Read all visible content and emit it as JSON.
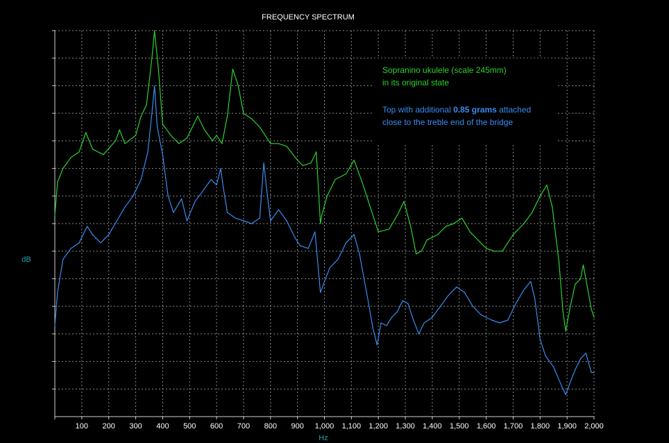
{
  "chart_data": {
    "type": "line",
    "title": "FREQUENCY SPECTRUM",
    "xlabel": "Hz",
    "ylabel": "dB",
    "xlim": [
      0,
      2000
    ],
    "ylim": [
      0,
      14
    ],
    "x_ticks": [
      "100",
      "200",
      "300",
      "400",
      "500",
      "600",
      "700",
      "800",
      "900",
      "1,000",
      "1,100",
      "1,200",
      "1,300",
      "1,400",
      "1,500",
      "1,600",
      "1,700",
      "1,800",
      "1,900",
      "2,000"
    ],
    "grid": true,
    "legend_lines": [
      {
        "text": "Sopranino ukulele (scale 245mm)",
        "color": "#2fd12f"
      },
      {
        "text": "in its original state",
        "color": "#2fd12f"
      },
      {
        "text": "",
        "color": "#3a8cf0"
      },
      {
        "text_before": "Top with additional ",
        "text_bold": "0.85 grams",
        "text_after": " attached",
        "color": "#3a8cf0"
      },
      {
        "text": "close to  the treble end  of the  bridge",
        "color": "#3a8cf0"
      }
    ],
    "series": [
      {
        "color": "#2fd12f",
        "points": [
          [
            0,
            7.3
          ],
          [
            10,
            8.5
          ],
          [
            30,
            9.0
          ],
          [
            60,
            9.4
          ],
          [
            90,
            9.6
          ],
          [
            115,
            10.3
          ],
          [
            140,
            9.7
          ],
          [
            180,
            9.5
          ],
          [
            225,
            10.0
          ],
          [
            240,
            10.4
          ],
          [
            260,
            9.9
          ],
          [
            300,
            10.2
          ],
          [
            320,
            10.9
          ],
          [
            340,
            11.3
          ],
          [
            360,
            13.0
          ],
          [
            370,
            14.0
          ],
          [
            385,
            12.5
          ],
          [
            400,
            10.6
          ],
          [
            430,
            10.2
          ],
          [
            460,
            9.9
          ],
          [
            490,
            10.1
          ],
          [
            530,
            10.9
          ],
          [
            555,
            10.4
          ],
          [
            585,
            10.0
          ],
          [
            600,
            10.2
          ],
          [
            620,
            9.9
          ],
          [
            640,
            10.9
          ],
          [
            660,
            12.6
          ],
          [
            680,
            12.0
          ],
          [
            700,
            11.0
          ],
          [
            730,
            10.8
          ],
          [
            760,
            10.5
          ],
          [
            800,
            9.9
          ],
          [
            830,
            9.9
          ],
          [
            860,
            9.8
          ],
          [
            900,
            9.3
          ],
          [
            920,
            9.1
          ],
          [
            950,
            9.2
          ],
          [
            970,
            9.6
          ],
          [
            985,
            7.0
          ],
          [
            990,
            7.3
          ],
          [
            1010,
            8.0
          ],
          [
            1040,
            8.6
          ],
          [
            1080,
            8.8
          ],
          [
            1110,
            9.3
          ],
          [
            1140,
            8.5
          ],
          [
            1170,
            7.6
          ],
          [
            1200,
            6.7
          ],
          [
            1240,
            6.8
          ],
          [
            1270,
            7.3
          ],
          [
            1295,
            7.8
          ],
          [
            1320,
            6.9
          ],
          [
            1340,
            5.9
          ],
          [
            1360,
            6.0
          ],
          [
            1380,
            6.4
          ],
          [
            1420,
            6.6
          ],
          [
            1450,
            6.9
          ],
          [
            1480,
            7.0
          ],
          [
            1510,
            7.2
          ],
          [
            1540,
            6.7
          ],
          [
            1570,
            6.4
          ],
          [
            1600,
            6.1
          ],
          [
            1630,
            6.0
          ],
          [
            1660,
            6.0
          ],
          [
            1700,
            6.6
          ],
          [
            1740,
            7.0
          ],
          [
            1770,
            7.4
          ],
          [
            1800,
            8.0
          ],
          [
            1825,
            8.4
          ],
          [
            1845,
            7.6
          ],
          [
            1870,
            5.6
          ],
          [
            1885,
            3.8
          ],
          [
            1895,
            3.1
          ],
          [
            1910,
            3.9
          ],
          [
            1930,
            4.8
          ],
          [
            1950,
            5.0
          ],
          [
            1960,
            5.5
          ],
          [
            1975,
            4.7
          ],
          [
            1990,
            3.9
          ],
          [
            2000,
            3.6
          ]
        ]
      },
      {
        "color": "#3a8cf0",
        "points": [
          [
            0,
            3.3
          ],
          [
            10,
            4.5
          ],
          [
            30,
            5.7
          ],
          [
            60,
            6.1
          ],
          [
            90,
            6.3
          ],
          [
            120,
            6.9
          ],
          [
            140,
            6.6
          ],
          [
            170,
            6.3
          ],
          [
            200,
            6.6
          ],
          [
            230,
            7.1
          ],
          [
            260,
            7.6
          ],
          [
            290,
            8.0
          ],
          [
            320,
            8.6
          ],
          [
            345,
            9.6
          ],
          [
            360,
            11.0
          ],
          [
            370,
            12.0
          ],
          [
            380,
            10.5
          ],
          [
            400,
            9.5
          ],
          [
            420,
            8.0
          ],
          [
            440,
            7.4
          ],
          [
            470,
            7.9
          ],
          [
            490,
            7.1
          ],
          [
            520,
            7.8
          ],
          [
            550,
            8.2
          ],
          [
            580,
            8.6
          ],
          [
            600,
            8.4
          ],
          [
            615,
            9.0
          ],
          [
            625,
            8.3
          ],
          [
            640,
            7.4
          ],
          [
            670,
            7.2
          ],
          [
            700,
            7.1
          ],
          [
            730,
            7.0
          ],
          [
            760,
            7.2
          ],
          [
            775,
            9.2
          ],
          [
            785,
            8.3
          ],
          [
            800,
            7.1
          ],
          [
            830,
            7.5
          ],
          [
            860,
            7.1
          ],
          [
            890,
            6.5
          ],
          [
            910,
            6.2
          ],
          [
            940,
            6.1
          ],
          [
            965,
            6.7
          ],
          [
            985,
            4.5
          ],
          [
            1000,
            4.9
          ],
          [
            1020,
            5.4
          ],
          [
            1050,
            5.7
          ],
          [
            1080,
            6.3
          ],
          [
            1110,
            6.6
          ],
          [
            1130,
            5.9
          ],
          [
            1160,
            4.3
          ],
          [
            1180,
            3.2
          ],
          [
            1195,
            2.6
          ],
          [
            1210,
            3.4
          ],
          [
            1230,
            3.3
          ],
          [
            1250,
            3.6
          ],
          [
            1270,
            3.8
          ],
          [
            1290,
            4.2
          ],
          [
            1310,
            4.1
          ],
          [
            1330,
            3.5
          ],
          [
            1350,
            3.0
          ],
          [
            1370,
            3.4
          ],
          [
            1400,
            3.6
          ],
          [
            1430,
            4.0
          ],
          [
            1460,
            4.4
          ],
          [
            1490,
            4.7
          ],
          [
            1520,
            4.5
          ],
          [
            1550,
            4.0
          ],
          [
            1580,
            3.7
          ],
          [
            1620,
            3.5
          ],
          [
            1650,
            3.4
          ],
          [
            1680,
            3.5
          ],
          [
            1710,
            4.1
          ],
          [
            1740,
            4.6
          ],
          [
            1765,
            4.9
          ],
          [
            1780,
            4.3
          ],
          [
            1800,
            2.8
          ],
          [
            1820,
            2.2
          ],
          [
            1850,
            1.8
          ],
          [
            1880,
            1.1
          ],
          [
            1895,
            0.8
          ],
          [
            1910,
            1.2
          ],
          [
            1930,
            1.7
          ],
          [
            1950,
            2.1
          ],
          [
            1970,
            2.3
          ],
          [
            1990,
            1.6
          ],
          [
            2000,
            1.6
          ]
        ]
      }
    ]
  }
}
